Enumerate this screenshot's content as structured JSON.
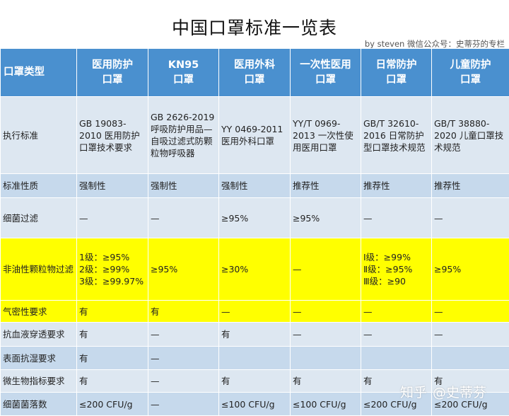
{
  "title": "中国口罩标准一览表",
  "byline": "by steven 微信公众号：史蒂芬的专栏",
  "columns": [
    {
      "line1": "口罩类型",
      "line2": ""
    },
    {
      "line1": "医用防护",
      "line2": "口罩"
    },
    {
      "line1": "KN95",
      "line2": "口罩"
    },
    {
      "line1": "医用外科",
      "line2": "口罩"
    },
    {
      "line1": "一次性医用",
      "line2": "口罩"
    },
    {
      "line1": "日常防护",
      "line2": "口罩"
    },
    {
      "line1": "儿童防护",
      "line2": "口罩"
    }
  ],
  "rows": [
    {
      "label": "执行标准",
      "cells": [
        "GB 19083-2010 医用防护口罩技术要求",
        "GB 2626-2019 呼吸防护用品—自吸过滤式防颗粒物呼吸器",
        "YY 0469-2011 医用外科口罩",
        "YY/T 0969-2013 一次性使用医用口罩",
        "GB/T 32610-2016 日常防护型口罩技术规范",
        "GB/T 38880-2020 儿童口罩技术规范"
      ]
    },
    {
      "label": "标准性质",
      "cells": [
        "强制性",
        "强制性",
        "强制性",
        "推荐性",
        "推荐性",
        "推荐性"
      ]
    },
    {
      "label": "细菌过滤",
      "cells": [
        "—",
        "—",
        "≥95%",
        "≥95%",
        "—",
        "—"
      ]
    },
    {
      "label": "非油性颗粒物过滤",
      "cells": [
        "1级：≥95%\n2级：≥99%\n3级：≥99.97%",
        "≥95%",
        "≥30%",
        "—",
        "Ⅰ级：≥99%\nⅡ级：≥95%\nⅢ级：≥90",
        "≥95%"
      ]
    },
    {
      "label": "气密性要求",
      "cells": [
        "有",
        "有",
        "—",
        "—",
        "—",
        "—"
      ]
    },
    {
      "label": "抗血液穿透要求",
      "cells": [
        "有",
        "—",
        "有",
        "—",
        "—",
        "—"
      ]
    },
    {
      "label": "表面抗湿要求",
      "cells": [
        "有",
        "—",
        "",
        "",
        "",
        ""
      ]
    },
    {
      "label": "微生物指标要求",
      "cells": [
        "有",
        "—",
        "有",
        "有",
        "有",
        "有"
      ]
    },
    {
      "label": "细菌菌落数",
      "cells": [
        "≤200 CFU/g",
        "—",
        "≤100 CFU/g",
        "≤100 CFU/g",
        "≤200 CFU/g",
        "≤200 CFU/g"
      ]
    }
  ],
  "watermark": {
    "logo": "知乎",
    "text": "@史蒂芬"
  }
}
